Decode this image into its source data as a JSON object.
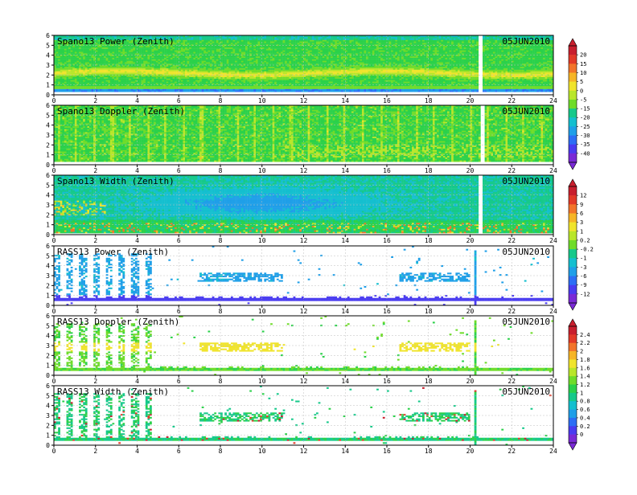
{
  "chart_data": {
    "type": "heatmap",
    "x_range": [
      0,
      24
    ],
    "y_range": [
      0,
      6
    ],
    "x_ticks": [
      0,
      2,
      4,
      6,
      8,
      10,
      12,
      14,
      16,
      18,
      20,
      22,
      24
    ],
    "y_ticks": [
      0,
      1,
      2,
      3,
      4,
      5,
      6
    ],
    "grid": true,
    "date": "05JUN2010",
    "panels": [
      {
        "title": "Spano13 Power (Zenith)",
        "kind": "spano_power",
        "colorbar": "cb1"
      },
      {
        "title": "Spano13 Doppler (Zenith)",
        "kind": "spano_doppler",
        "colorbar": "cb1"
      },
      {
        "title": "Spano13 Width (Zenith)",
        "kind": "spano_width",
        "colorbar": "cb2"
      },
      {
        "title": "RASS13 Power (Zenith)",
        "kind": "rass_power",
        "colorbar": "cb2"
      },
      {
        "title": "RASS13 Doppler (Zenith)",
        "kind": "rass_doppler",
        "colorbar": "cb3"
      },
      {
        "title": "RASS13 Width (Zenith)",
        "kind": "rass_width",
        "colorbar": "cb3"
      }
    ],
    "colorbars": [
      {
        "id": "cb1",
        "labels": [
          "20",
          "15",
          "10",
          "5",
          "0",
          "-5",
          "-15",
          "-20",
          "-25",
          "-30",
          "-35",
          "-40"
        ]
      },
      {
        "id": "cb2",
        "labels": [
          "12",
          "9",
          "6",
          "3",
          "1",
          "0.2",
          "-0.2",
          "-1",
          "-3",
          "-6",
          "-9",
          "-12"
        ]
      },
      {
        "id": "cb3",
        "labels": [
          "2.4",
          "2.2",
          "2",
          "1.8",
          "1.6",
          "1.4",
          "1.2",
          "1",
          "0.8",
          "0.6",
          "0.4",
          "0.2",
          "0"
        ]
      }
    ],
    "palette": [
      "#7a2ad6",
      "#4a3cf0",
      "#2d6ef5",
      "#1f9fe8",
      "#14bfcf",
      "#16c98a",
      "#2bd14a",
      "#6fdc2a",
      "#b9e62a",
      "#f0e42c",
      "#f6b526",
      "#f2742a",
      "#e23a28",
      "#c81f2e"
    ]
  }
}
